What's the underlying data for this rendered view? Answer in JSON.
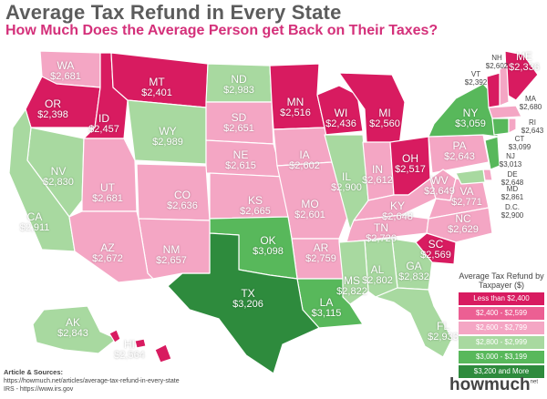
{
  "title": "Average Tax Refund in Every State",
  "subtitle": "How Much Does the Average Person get Back on Their Taxes?",
  "legend": {
    "title": "Average Tax Refund by Taxpayer ($)",
    "items": [
      {
        "label": "Less than $2,400",
        "color": "#d81b60"
      },
      {
        "label": "$2,400 - $2,599",
        "color": "#ec5f93"
      },
      {
        "label": "$2,600 - $2,799",
        "color": "#f4a6c4"
      },
      {
        "label": "$2,800 - $2,999",
        "color": "#a8d9a0"
      },
      {
        "label": "$3,000 - $3,199",
        "color": "#58b85b"
      },
      {
        "label": "$3,200 and More",
        "color": "#2e8b3d"
      }
    ]
  },
  "states": [
    {
      "ab": "WA",
      "val": "$2,681"
    },
    {
      "ab": "OR",
      "val": "$2,398"
    },
    {
      "ab": "ID",
      "val": "$2,457"
    },
    {
      "ab": "MT",
      "val": "$2,401"
    },
    {
      "ab": "WY",
      "val": "$2,989"
    },
    {
      "ab": "ND",
      "val": "$2,983"
    },
    {
      "ab": "SD",
      "val": "$2,651"
    },
    {
      "ab": "NE",
      "val": "$2,615"
    },
    {
      "ab": "MN",
      "val": "$2,516"
    },
    {
      "ab": "WI",
      "val": "$2,436"
    },
    {
      "ab": "MI",
      "val": "$2,560"
    },
    {
      "ab": "IA",
      "val": "$2,602"
    },
    {
      "ab": "NV",
      "val": "$2,830"
    },
    {
      "ab": "UT",
      "val": "$2,681"
    },
    {
      "ab": "CO",
      "val": "$2,636"
    },
    {
      "ab": "KS",
      "val": "$2,665"
    },
    {
      "ab": "MO",
      "val": "$2,601"
    },
    {
      "ab": "IL",
      "val": "$2,900"
    },
    {
      "ab": "IN",
      "val": "$2,612"
    },
    {
      "ab": "OH",
      "val": "$2,517"
    },
    {
      "ab": "PA",
      "val": "$2,643"
    },
    {
      "ab": "NY",
      "val": "$3,059"
    },
    {
      "ab": "CA",
      "val": "$2,911"
    },
    {
      "ab": "AZ",
      "val": "$2,672"
    },
    {
      "ab": "NM",
      "val": "$2,657"
    },
    {
      "ab": "OK",
      "val": "$3,098"
    },
    {
      "ab": "TX",
      "val": "$3,206"
    },
    {
      "ab": "AR",
      "val": "$2,759"
    },
    {
      "ab": "LA",
      "val": "$3,115"
    },
    {
      "ab": "MS",
      "val": "$2,822"
    },
    {
      "ab": "AL",
      "val": "$2,802"
    },
    {
      "ab": "TN",
      "val": "$2,726"
    },
    {
      "ab": "KY",
      "val": "$2,648"
    },
    {
      "ab": "WV",
      "val": "$2,649"
    },
    {
      "ab": "VA",
      "val": "$2,771"
    },
    {
      "ab": "NC",
      "val": "$2,629"
    },
    {
      "ab": "SC",
      "val": "$2,569"
    },
    {
      "ab": "GA",
      "val": "$2,832"
    },
    {
      "ab": "FL",
      "val": "$2,933"
    },
    {
      "ab": "AK",
      "val": "$2,843"
    },
    {
      "ab": "HI",
      "val": "$2,564"
    },
    {
      "ab": "ME",
      "val": "$2,336"
    },
    {
      "ab": "NH",
      "val": "$2,602"
    },
    {
      "ab": "VT",
      "val": "$2,392"
    },
    {
      "ab": "MA",
      "val": "$2,680"
    },
    {
      "ab": "RI",
      "val": "$2,643"
    },
    {
      "ab": "CT",
      "val": "$3,099"
    },
    {
      "ab": "NJ",
      "val": "$3,013"
    },
    {
      "ab": "DE",
      "val": "$2,648"
    },
    {
      "ab": "MD",
      "val": "$2,861"
    },
    {
      "ab": "D.C.",
      "val": "$2,900"
    }
  ],
  "footer": {
    "heading": "Article & Sources:",
    "line1": "https://howmuch.net/articles/average-tax-refund-in-every-state",
    "line2": "IRS - https://www.irs.gov"
  },
  "brand": {
    "name": "howmuch",
    "suffix": "net"
  }
}
